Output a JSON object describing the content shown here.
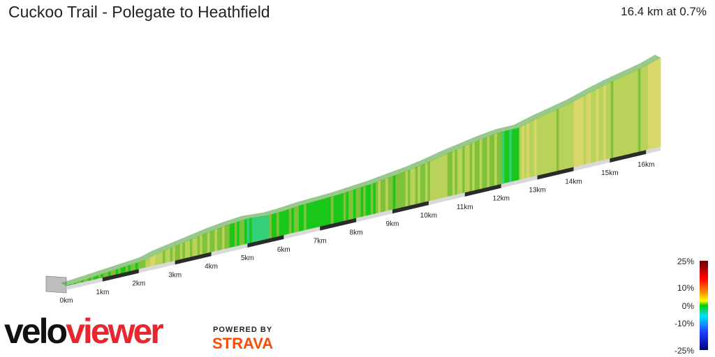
{
  "header": {
    "title": "Cuckoo Trail - Polegate to Heathfield",
    "stats": "16.4 km at 0.7%"
  },
  "legend": {
    "labels": [
      "25%",
      "10%",
      "0%",
      "-10%",
      "-25%"
    ],
    "colors": [
      "#6b0000",
      "#ff0000",
      "#ff8c00",
      "#ffff00",
      "#00cc00",
      "#00e5ff",
      "#1e3cff",
      "#000080"
    ]
  },
  "branding": {
    "logo_part1": "velo",
    "logo_part2": "viewer",
    "powered_by": "POWERED BY",
    "strava": "STRAVA"
  },
  "chart_data": {
    "type": "area",
    "title": "Cuckoo Trail - Polegate to Heathfield",
    "distance_km": 16.4,
    "average_gradient_pct": 0.7,
    "xlabel": "",
    "ylabel": "",
    "x_unit": "km",
    "tick_labels": [
      "0km",
      "1km",
      "2km",
      "3km",
      "4km",
      "5km",
      "6km",
      "7km",
      "8km",
      "9km",
      "10km",
      "11km",
      "12km",
      "13km",
      "14km",
      "15km",
      "16km"
    ],
    "xlim": [
      0,
      16.4
    ],
    "series": [
      {
        "distance_km": [
          0,
          0.5,
          1.0,
          1.5,
          2.0,
          2.2,
          2.5,
          3.0,
          3.5,
          4.0,
          4.5,
          5.0,
          5.3,
          5.6,
          6.0,
          6.5,
          7.0,
          7.5,
          8.0,
          8.5,
          9.0,
          9.5,
          10.0,
          10.5,
          11.0,
          11.5,
          12.0,
          12.5,
          13.0,
          13.5,
          14.0,
          14.5,
          15.0,
          15.5,
          16.0,
          16.4
        ],
        "relative_height": [
          0,
          2,
          4,
          6,
          8,
          9,
          13,
          17,
          21,
          25,
          28,
          30,
          29,
          28,
          29,
          31,
          32,
          33,
          35,
          37,
          40,
          43,
          47,
          52,
          56,
          60,
          63,
          63,
          69,
          74,
          79,
          86,
          92,
          97,
          102,
          108
        ]
      }
    ]
  }
}
